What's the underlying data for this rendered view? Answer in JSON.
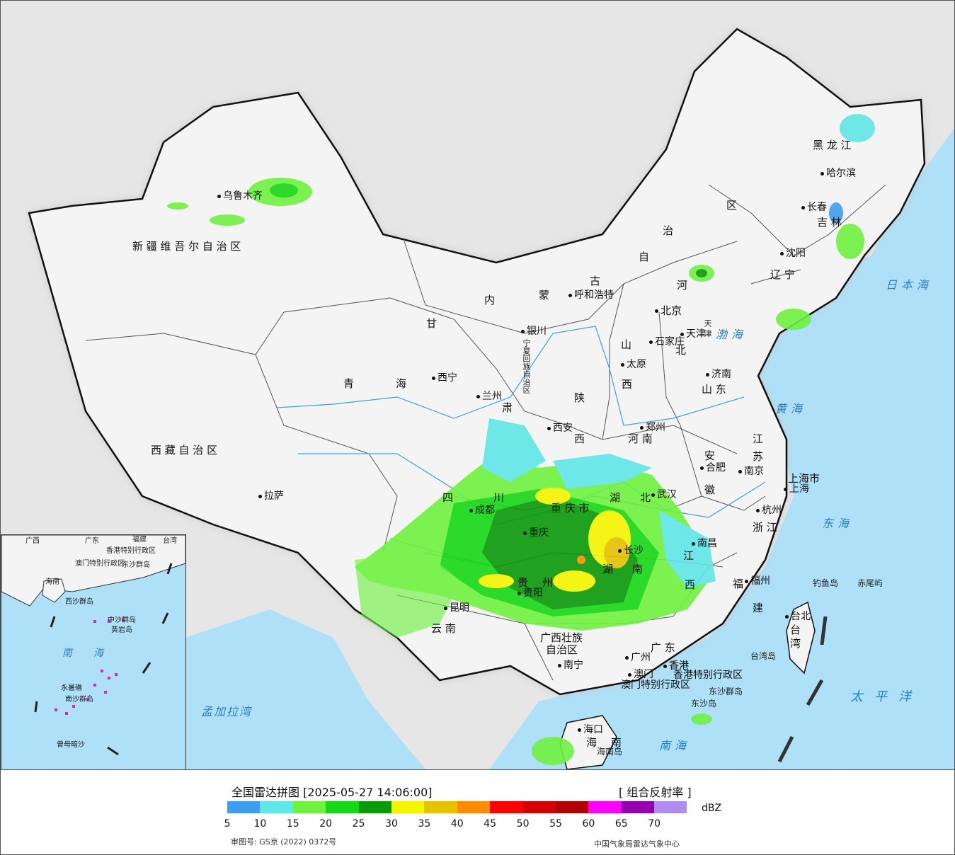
{
  "legend": {
    "title": "全国雷达拼图 [2025-05-27 14:06:00]",
    "product": "[ 组合反射率 ]",
    "unit": "dBZ",
    "approval": "审图号: GS京 (2022) 0372号",
    "source": "中国气象局雷达气象中心",
    "ticks": [
      "5",
      "10",
      "15",
      "20",
      "25",
      "30",
      "35",
      "40",
      "45",
      "50",
      "55",
      "60",
      "65",
      "70"
    ],
    "colors": [
      "#3d9df0",
      "#5fe6e6",
      "#6ef23f",
      "#16d816",
      "#0a9a0a",
      "#f5f500",
      "#e6c200",
      "#ff8c00",
      "#ff0000",
      "#d40000",
      "#b30000",
      "#ff00ff",
      "#9400b0",
      "#b08cf0"
    ]
  },
  "map": {
    "provinces": {
      "xinjiang": "新 疆 维 吾 尔 自 治 区",
      "xizang": "西 藏 自 治 区",
      "qinghai_1": "青",
      "qinghai_2": "海",
      "gansu_1": "甘",
      "gansu_2": "肃",
      "neimenggu_1": "内",
      "neimenggu_2": "蒙",
      "neimenggu_3": "古",
      "neimenggu_4": "自",
      "neimenggu_5": "治",
      "neimenggu_6": "区",
      "heilongjiang": "黑 龙 江",
      "jilin": "吉 林",
      "liaoning": "辽 宁",
      "hebei_1": "河",
      "hebei_2": "北",
      "shanxi_1": "山",
      "shanxi_2": "西",
      "shandong": "山 东",
      "shaanxi_1": "陕",
      "shaanxi_2": "西",
      "henan": "河 南",
      "jiangsu_1": "江",
      "jiangsu_2": "苏",
      "anhui_1": "安",
      "anhui_2": "徽",
      "zhejiang": "浙 江",
      "hubei_1": "湖",
      "hubei_2": "北",
      "sichuan_1": "四",
      "sichuan_2": "川",
      "chongqing": "重 庆 市",
      "guizhou_1": "贵",
      "guizhou_2": "州",
      "hunan_1": "湖",
      "hunan_2": "南",
      "jiangxi_1": "江",
      "jiangxi_2": "西",
      "fujian_1": "福",
      "fujian_2": "建",
      "yunnan": "云 南",
      "guangxi_1": "广西壮族",
      "guangxi_2": "自治区",
      "guangdong": "广 东",
      "hainan_1": "海",
      "hainan_2": "南",
      "taiwan_1": "台",
      "taiwan_2": "湾",
      "ningxia": "宁夏回族自治区",
      "shanghai": "上海市",
      "tianjin": "天 津",
      "hk_sar": "香港特别行政区",
      "macau_sar": "澳门特别行政区"
    },
    "cities": {
      "urumqi": "乌鲁木齐",
      "lhasa": "拉萨",
      "xining": "西宁",
      "lanzhou": "兰州",
      "yinchuan": "银川",
      "hohhot": "呼和浩特",
      "beijing": "北京",
      "tianjin": "天津",
      "shijiazhuang": "石家庄",
      "taiyuan": "太原",
      "jinan": "济南",
      "xian": "西安",
      "zhengzhou": "郑州",
      "hefei": "合肥",
      "nanjing": "南京",
      "shanghai": "上海",
      "hangzhou": "杭州",
      "wuhan": "武汉",
      "chengdu": "成都",
      "chongqing": "重庆",
      "guiyang": "贵阳",
      "changsha": "长沙",
      "nanchang": "南昌",
      "fuzhou": "福州",
      "kunming": "昆明",
      "nanning": "南宁",
      "guangzhou": "广州",
      "hongkong": "香港",
      "macau": "澳门",
      "haikou": "海口",
      "taibei": "台北",
      "shenyang": "沈阳",
      "changchun": "长春",
      "harbin": "哈尔滨"
    },
    "seas": {
      "japan_sea": "日本海",
      "bohai": "渤海",
      "yellow_sea": "黄海",
      "east_sea": "东海",
      "south_sea": "南海",
      "pacific": "太平洋",
      "bengal": "孟加拉湾"
    },
    "islands": {
      "diaoyu": "钓鱼岛",
      "chiwei": "赤尾屿",
      "taiwan_island": "台湾岛",
      "dongsha_qundao": "东沙群岛",
      "dongsha_dao": "东沙岛",
      "hainan_dao": "海南岛"
    },
    "inset": {
      "guangxi": "广西",
      "guangdong": "广东",
      "fujian": "福建",
      "taiwan": "台湾",
      "hainan": "海南",
      "hk": "香港特别行政区",
      "macau": "澳门特别行政区",
      "dongsha": "东沙群岛",
      "zhongsha": "中沙群岛",
      "huangyan": "黄岩岛",
      "nanhai_1": "南",
      "nanhai_2": "海",
      "yongshu": "永暑礁",
      "nansha": "南沙群岛",
      "zengmu": "曾母暗沙",
      "xisha": "西沙群岛"
    }
  }
}
